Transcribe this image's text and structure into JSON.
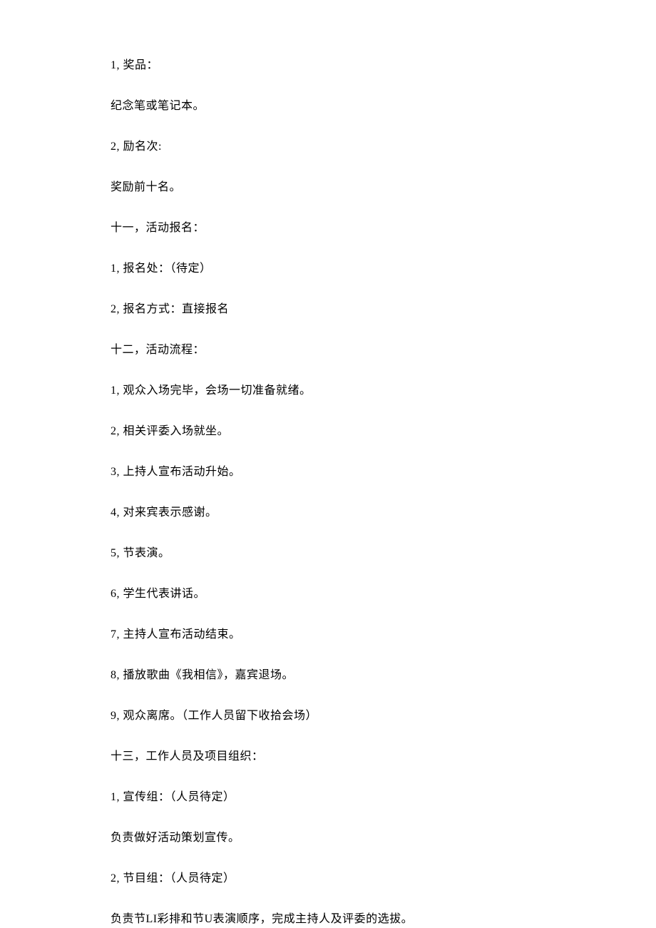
{
  "lines": [
    "1,   奖品：",
    "纪念笔或笔记本。",
    "2,   励名次:",
    "奖励前十名。",
    "十一，活动报名：",
    "1,   报名处：（待定）",
    "2,   报名方式：直接报名",
    "十二，活动流程：",
    "1,  观众入场完毕，会场一切准备就绪。",
    "2,   相关评委入场就坐。",
    "3,   上持人宣布活动升始。",
    "4,   对来宾表示感谢。",
    "5,   节表演。",
    "6,   学生代表讲话。",
    "7,   主持人宣布活动结束。",
    "8,   播放歌曲《我相信》，嘉宾退场。",
    "9,   观众离席。（工作人员留下收拾会场）",
    "十三，工作人员及项目组织：",
    "1,     宣传组：（人员待定）",
    "负责做好活动策划宣传。",
    "2,     节目组：（人员待定）",
    "负责节LI彩排和节U表演顺序，完成主持人及评委的选拔。"
  ]
}
